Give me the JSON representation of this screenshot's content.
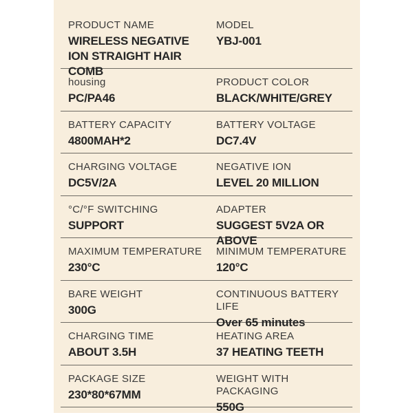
{
  "theme": {
    "page_bg": "#ffffff",
    "panel_bg": "#f8eedd",
    "divider": "#6e6b64",
    "label_color": "#3b3b3b",
    "value_color": "#262626"
  },
  "panel": {
    "rows": [
      {
        "left": {
          "label": "PRODUCT NAME",
          "value": "WIRELESS NEGATIVE\nION STRAIGHT HAIR COMB"
        },
        "right": {
          "label": "MODEL",
          "value": "YBJ-001"
        }
      },
      {
        "left": {
          "label": "housing",
          "value": "PC/PA46"
        },
        "right": {
          "label": "PRODUCT COLOR",
          "value": "BLACK/WHITE/GREY"
        }
      },
      {
        "left": {
          "label": "BATTERY CAPACITY",
          "value": "4800MAH*2"
        },
        "right": {
          "label": "BATTERY VOLTAGE",
          "value": "DC7.4V"
        }
      },
      {
        "left": {
          "label": "CHARGING VOLTAGE",
          "value": "DC5V/2A"
        },
        "right": {
          "label": "NEGATIVE ION",
          "value": "LEVEL 20 MILLION"
        }
      },
      {
        "left": {
          "label": "°C/°F SWITCHING",
          "value": "SUPPORT"
        },
        "right": {
          "label": "ADAPTER",
          "value": "SUGGEST 5V2A OR ABOVE"
        }
      },
      {
        "left": {
          "label": "MAXIMUM TEMPERATURE",
          "value": "230°C"
        },
        "right": {
          "label": "MINIMUM TEMPERATURE",
          "value": "120°C"
        }
      },
      {
        "left": {
          "label": "BARE WEIGHT",
          "value": "300G"
        },
        "right": {
          "label": "CONTINUOUS BATTERY LIFE",
          "value": "Over 65 minutes"
        }
      },
      {
        "left": {
          "label": "CHARGING TIME",
          "value": "ABOUT 3.5H"
        },
        "right": {
          "label": "HEATING AREA",
          "value": "37 HEATING TEETH"
        }
      },
      {
        "left": {
          "label": "PACKAGE SIZE",
          "value": "230*80*67MM"
        },
        "right": {
          "label": "WEIGHT WITH PACKAGING",
          "value": "550G"
        }
      }
    ]
  }
}
